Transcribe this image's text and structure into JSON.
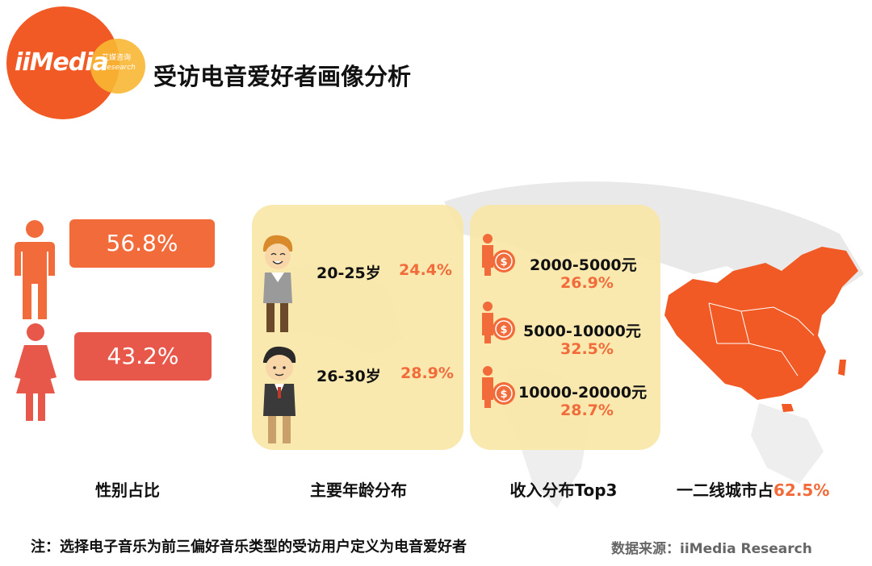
{
  "header": {
    "logo_text": "iiMedia",
    "logo_sub_cn": "艾媒咨询",
    "logo_sub_en": "Research",
    "title": "受访电音爱好者画像分析"
  },
  "gender": {
    "male_pct": "56.8%",
    "female_pct": "43.2%",
    "caption": "性别占比",
    "colors": {
      "male": "#f26b3a",
      "female": "#e8584a"
    }
  },
  "age": {
    "caption": "主要年龄分布",
    "items": [
      {
        "range": "20-25岁",
        "pct": "24.4%"
      },
      {
        "range": "26-30岁",
        "pct": "28.9%"
      }
    ]
  },
  "income": {
    "caption": "收入分布Top3",
    "items": [
      {
        "range": "2000-5000元",
        "pct": "26.9%"
      },
      {
        "range": "5000-10000元",
        "pct": "32.5%"
      },
      {
        "range": "10000-20000元",
        "pct": "28.7%"
      }
    ]
  },
  "city": {
    "caption_prefix": "一二线城市占",
    "caption_pct": "62.5%"
  },
  "footer": {
    "note": "注：选择电子音乐为前三偏好音乐类型的受访用户定义为电音爱好者",
    "source": "数据来源：iiMedia Research"
  },
  "colors": {
    "accent": "#f26b3a",
    "panel": "#f8e7a6",
    "map": "#f15a24"
  }
}
